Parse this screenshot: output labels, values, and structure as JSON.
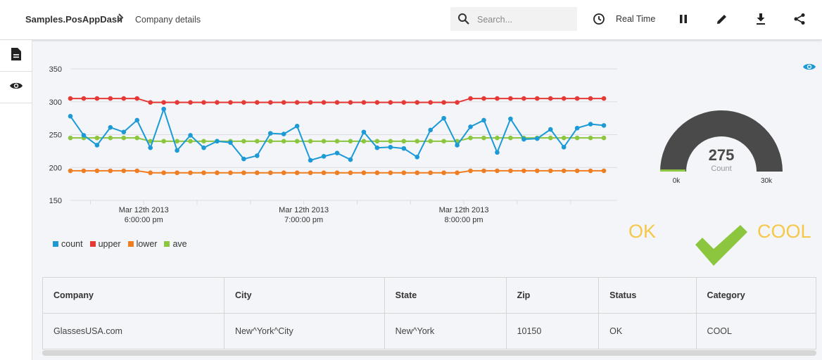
{
  "breadcrumb": {
    "app": "Samples.PosAppDash",
    "separator": ">",
    "page": "Company details"
  },
  "search": {
    "placeholder": "Search...",
    "value": ""
  },
  "toolbar": {
    "realtime_label": "Real Time"
  },
  "icons": {
    "search": "search-icon",
    "clock": "clock-icon",
    "pause": "pause-icon",
    "edit": "pencil-icon",
    "download": "download-icon",
    "share": "share-icon",
    "document": "document-icon",
    "eye": "eye-icon",
    "check": "check-icon"
  },
  "colors": {
    "count": "#1b9ad6",
    "upper": "#e53935",
    "lower": "#ef7d22",
    "ave": "#8cc63f",
    "gauge": "#4a4a4a",
    "status_text": "#f5c84a",
    "check": "#8cc63f"
  },
  "chart_data": {
    "type": "line",
    "x_tick_labels": [
      {
        "date": "Mar 12th 2013",
        "time": "6:00:00 pm"
      },
      {
        "date": "Mar 12th 2013",
        "time": "7:00:00 pm"
      },
      {
        "date": "Mar 12th 2013",
        "time": "8:00:00 pm"
      }
    ],
    "x_tick_positions": [
      5.5,
      17.5,
      29.5
    ],
    "y_ticks": [
      150,
      200,
      250,
      300,
      350
    ],
    "ylim": [
      150,
      350
    ],
    "xlim": [
      0,
      41
    ],
    "grid": true,
    "legend_position": "bottom-left",
    "series": [
      {
        "name": "count",
        "values": [
          278,
          249,
          234,
          261,
          254,
          272,
          230,
          289,
          226,
          249,
          230,
          240,
          238,
          213,
          218,
          252,
          251,
          263,
          211,
          217,
          222,
          212,
          254,
          230,
          231,
          229,
          216,
          257,
          275,
          234,
          262,
          272,
          223,
          274,
          243,
          244,
          258,
          231,
          260,
          266,
          264
        ]
      },
      {
        "name": "upper",
        "values": [
          305,
          305,
          305,
          305,
          305,
          305,
          299,
          299,
          299,
          299,
          299,
          299,
          299,
          299,
          299,
          299,
          299,
          299,
          299,
          299,
          299,
          299,
          299,
          299,
          299,
          299,
          299,
          299,
          299,
          299,
          305,
          305,
          305,
          305,
          305,
          305,
          305,
          305,
          305,
          305,
          305
        ]
      },
      {
        "name": "lower",
        "values": [
          195,
          195,
          195,
          195,
          195,
          195,
          192,
          192,
          192,
          192,
          192,
          192,
          192,
          192,
          192,
          192,
          192,
          192,
          192,
          192,
          192,
          192,
          192,
          192,
          192,
          192,
          192,
          192,
          192,
          192,
          195,
          195,
          195,
          195,
          195,
          195,
          195,
          195,
          195,
          195,
          195
        ]
      },
      {
        "name": "ave",
        "values": [
          245,
          245,
          245,
          245,
          245,
          245,
          240,
          240,
          240,
          240,
          240,
          240,
          240,
          240,
          240,
          240,
          240,
          240,
          240,
          240,
          240,
          240,
          240,
          240,
          240,
          240,
          240,
          240,
          240,
          240,
          245,
          245,
          245,
          245,
          245,
          245,
          245,
          245,
          245,
          245,
          245
        ]
      }
    ]
  },
  "gauge": {
    "value": "275",
    "value_num": 275,
    "unit_label": "Count",
    "min_label": "0k",
    "max_label": "30k",
    "min": 0,
    "max": 30000
  },
  "status": {
    "left_text": "OK",
    "right_text": "COOL"
  },
  "table": {
    "columns": [
      "Company",
      "City",
      "State",
      "Zip",
      "Status",
      "Category"
    ],
    "rows": [
      [
        "GlassesUSA.com",
        "New^York^City",
        "New^York",
        "10150",
        "OK",
        "COOL"
      ]
    ]
  }
}
